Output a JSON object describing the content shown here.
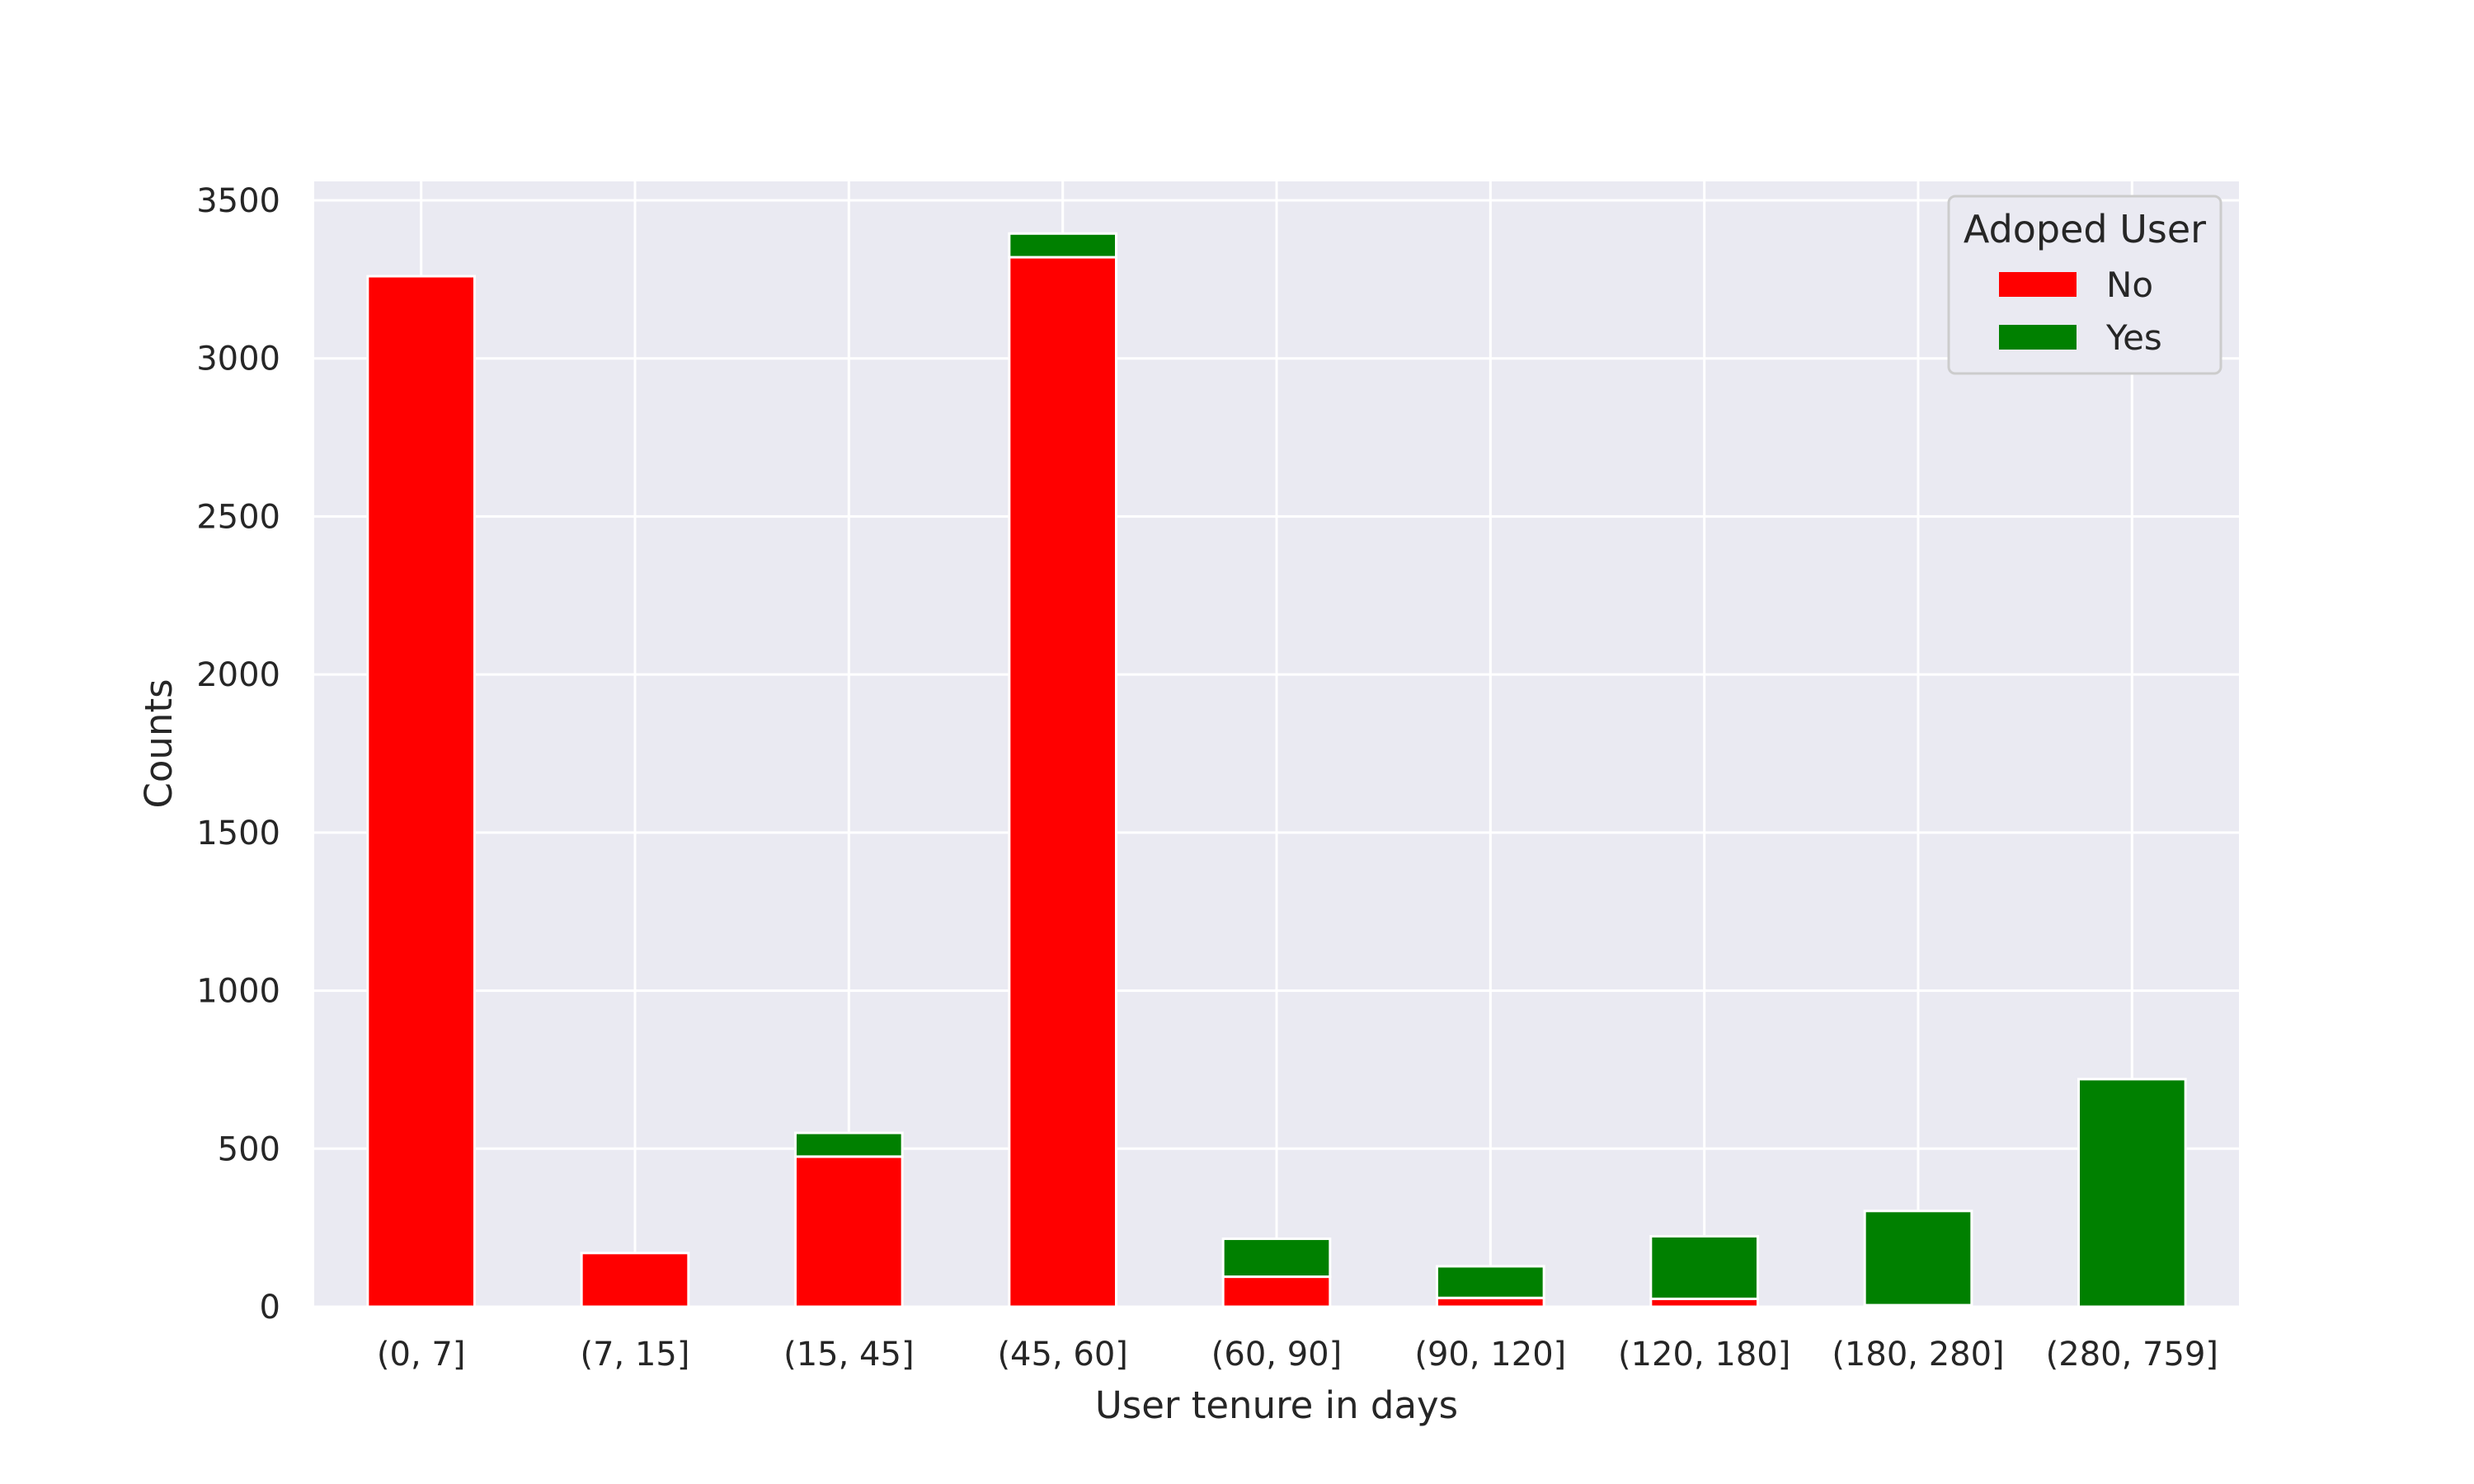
{
  "chart_data": {
    "type": "bar",
    "stacked": true,
    "categories": [
      "(0, 7]",
      "(7, 15]",
      "(15, 45]",
      "(45, 60]",
      "(60, 90]",
      "(90, 120]",
      "(120, 180]",
      "(180, 280]",
      "(280, 759]"
    ],
    "series": [
      {
        "name": "No",
        "color": "#ff0000",
        "values": [
          3260,
          170,
          475,
          3320,
          95,
          28,
          25,
          5,
          0
        ]
      },
      {
        "name": "Yes",
        "color": "#008000",
        "values": [
          0,
          0,
          75,
          75,
          120,
          100,
          198,
          298,
          720
        ]
      }
    ],
    "xlabel": "User tenure in days",
    "ylabel": "Counts",
    "yticks": [
      0,
      500,
      1000,
      1500,
      2000,
      2500,
      3000,
      3500
    ],
    "ylim": [
      0,
      3560
    ],
    "grid": true,
    "legend": {
      "title": "Adoped User",
      "placement": "top-right"
    },
    "background": "#eaeaf2"
  }
}
